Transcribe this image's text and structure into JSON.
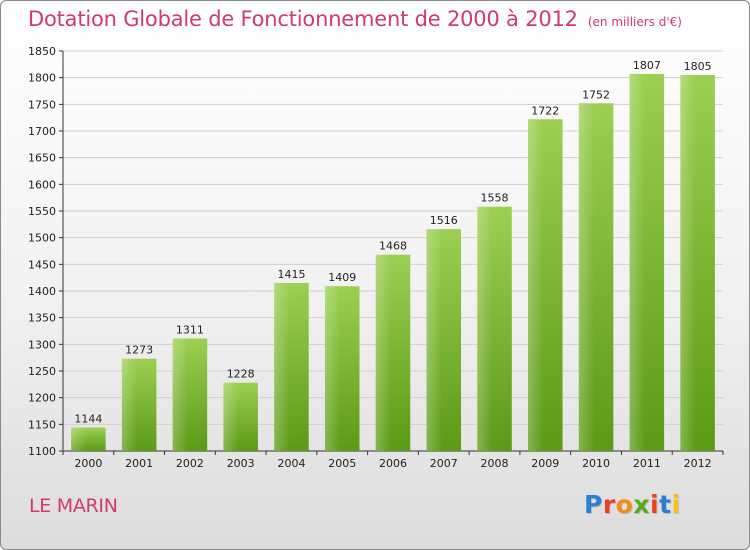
{
  "header": {
    "title": "Dotation Globale de Fonctionnement de 2000 à 2012",
    "subtitle": "(en milliers d'€)"
  },
  "footer": {
    "place": "LE MARIN"
  },
  "logo": {
    "text": "Proxiti",
    "letter_colors": [
      "#2a7fd4",
      "#e8421f",
      "#f28c1a",
      "#5aa81e",
      "#e8421f",
      "#2a7fd4",
      "#f2c21a"
    ]
  },
  "colors": {
    "title": "#d23a6b",
    "bar_top": "#9ccf52",
    "bar_bottom": "#5b9a16",
    "grid": "#cfcfcf"
  },
  "chart_data": {
    "type": "bar",
    "categories": [
      "2000",
      "2001",
      "2002",
      "2003",
      "2004",
      "2005",
      "2006",
      "2007",
      "2008",
      "2009",
      "2010",
      "2011",
      "2012"
    ],
    "values": [
      1144,
      1273,
      1311,
      1228,
      1415,
      1409,
      1468,
      1516,
      1558,
      1722,
      1752,
      1807,
      1805
    ],
    "data_labels": [
      "1144",
      "1273",
      "1311",
      "1228",
      "1415",
      "1409",
      "1468",
      "1516",
      "1558",
      "1722",
      "1752",
      "1807",
      "1805"
    ],
    "yticks": [
      1100,
      1150,
      1200,
      1250,
      1300,
      1350,
      1400,
      1450,
      1500,
      1550,
      1600,
      1650,
      1700,
      1750,
      1800,
      1850
    ],
    "ylim": [
      1100,
      1850
    ],
    "grid": true,
    "legend": false
  }
}
